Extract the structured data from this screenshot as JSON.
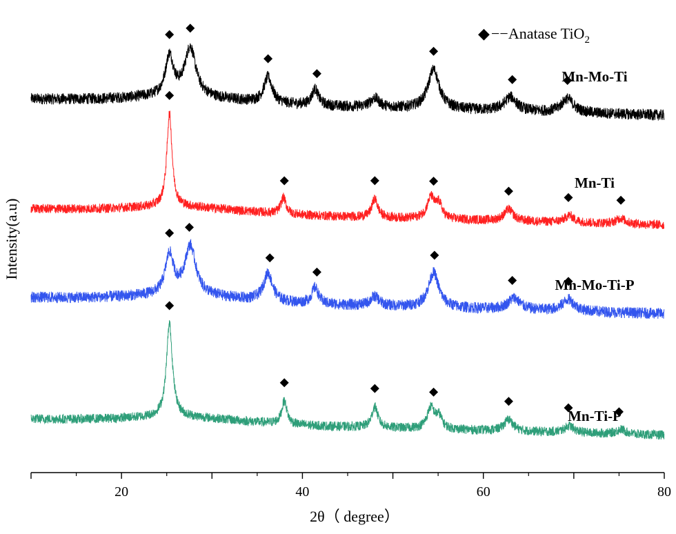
{
  "chart_data": {
    "type": "line",
    "xlabel": "2θ（ degree）",
    "ylabel": "Intensity(a.u)",
    "xlim": [
      10,
      80
    ],
    "xticks": [
      20,
      40,
      60,
      80
    ],
    "y_ticks_shown": false,
    "grid": false,
    "legend": {
      "marker": "◆",
      "text": "−−Anatase TiO",
      "subscript": "2",
      "placement": "top-right"
    },
    "series": [
      {
        "name": "Mn-Mo-Ti",
        "color": "#000000",
        "baseline": 0.86,
        "offset": 0.78,
        "peaks": [
          [
            25.3,
            0.085,
            0.55
          ],
          [
            27.6,
            0.105,
            0.75
          ],
          [
            36.2,
            0.055,
            0.55
          ],
          [
            41.4,
            0.035,
            0.45
          ],
          [
            48.0,
            0.02,
            0.6
          ],
          [
            54.5,
            0.085,
            0.75
          ],
          [
            63.0,
            0.03,
            0.8
          ],
          [
            69.3,
            0.03,
            0.8
          ]
        ],
        "noise": 0.012,
        "markers": [
          25.3,
          27.6,
          36.2,
          41.6,
          54.5,
          63.2,
          69.3
        ]
      },
      {
        "name": "Mn-Ti",
        "color": "#ff2020",
        "baseline": 0.62,
        "offset": 0.545,
        "peaks": [
          [
            25.3,
            0.2,
            0.35
          ],
          [
            37.9,
            0.035,
            0.35
          ],
          [
            48.0,
            0.04,
            0.4
          ],
          [
            54.2,
            0.045,
            0.5
          ],
          [
            55.1,
            0.03,
            0.4
          ],
          [
            62.8,
            0.025,
            0.6
          ],
          [
            69.5,
            0.015,
            0.6
          ],
          [
            75.2,
            0.012,
            0.6
          ]
        ],
        "noise": 0.01,
        "markers": [
          25.3,
          38.0,
          48.0,
          54.5,
          62.8,
          69.4,
          75.2
        ]
      },
      {
        "name": "Mn-Mo-Ti-P",
        "color": "#3355ee",
        "baseline": 0.43,
        "offset": 0.355,
        "peaks": [
          [
            25.3,
            0.085,
            0.55
          ],
          [
            27.6,
            0.105,
            0.75
          ],
          [
            36.2,
            0.06,
            0.6
          ],
          [
            41.4,
            0.035,
            0.45
          ],
          [
            48.0,
            0.02,
            0.6
          ],
          [
            54.5,
            0.075,
            0.7
          ],
          [
            63.4,
            0.025,
            0.8
          ],
          [
            69.4,
            0.025,
            0.8
          ]
        ],
        "noise": 0.012,
        "markers": [
          25.3,
          27.5,
          36.4,
          41.6,
          54.6,
          63.2,
          69.4
        ]
      },
      {
        "name": "Mn-Ti-P",
        "color": "#2e9e79",
        "baseline": 0.17,
        "offset": 0.095,
        "peaks": [
          [
            25.3,
            0.2,
            0.4
          ],
          [
            38.0,
            0.05,
            0.35
          ],
          [
            48.0,
            0.045,
            0.4
          ],
          [
            54.2,
            0.045,
            0.5
          ],
          [
            55.1,
            0.025,
            0.4
          ],
          [
            62.8,
            0.025,
            0.6
          ],
          [
            69.5,
            0.015,
            0.6
          ],
          [
            75.2,
            0.01,
            0.6
          ]
        ],
        "noise": 0.01,
        "markers": [
          25.3,
          38.0,
          48.0,
          54.5,
          62.8,
          69.4,
          75.0
        ]
      }
    ]
  }
}
